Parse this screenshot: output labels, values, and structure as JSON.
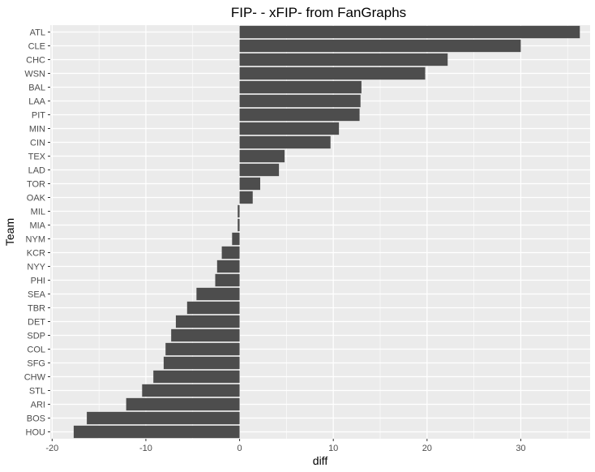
{
  "chart_data": {
    "type": "bar",
    "orientation": "horizontal",
    "title": "FIP-  -  xFIP- from FanGraphs",
    "xlabel": "diff",
    "ylabel": "Team",
    "xlim": [
      -20.2,
      37.4
    ],
    "xticks": [
      -20,
      -10,
      0,
      10,
      20,
      30
    ],
    "grid": true,
    "colors": {
      "bar": "#4d4d4d",
      "panel": "#ebebeb",
      "grid": "#ffffff"
    },
    "categories": [
      "ATL",
      "CLE",
      "CHC",
      "WSN",
      "BAL",
      "LAA",
      "PIT",
      "MIN",
      "CIN",
      "TEX",
      "LAD",
      "TOR",
      "OAK",
      "MIL",
      "MIA",
      "NYM",
      "KCR",
      "NYY",
      "PHI",
      "SEA",
      "TBR",
      "DET",
      "SDP",
      "COL",
      "SFG",
      "CHW",
      "STL",
      "ARI",
      "BOS",
      "HOU"
    ],
    "values": [
      36.3,
      30.0,
      22.2,
      19.8,
      13.0,
      12.9,
      12.8,
      10.6,
      9.7,
      4.8,
      4.2,
      2.2,
      1.4,
      -0.2,
      -0.2,
      -0.8,
      -1.9,
      -2.4,
      -2.6,
      -4.6,
      -5.6,
      -6.8,
      -7.3,
      -7.9,
      -8.1,
      -9.2,
      -10.4,
      -12.1,
      -16.3,
      -17.7
    ]
  }
}
